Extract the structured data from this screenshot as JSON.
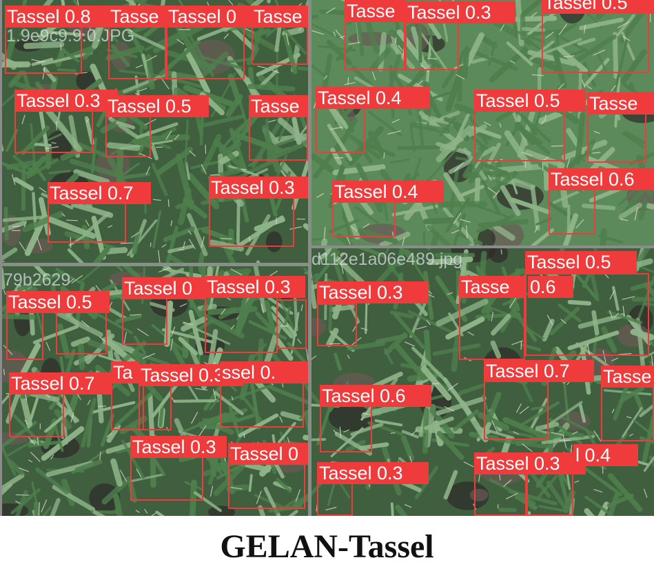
{
  "caption": "GELAN-Tassel",
  "colors": {
    "box": "#ef3b3b",
    "leaf": "#4f7f4d",
    "leaf_light": "#8fb489",
    "soil": "#2d2a28",
    "frame": "#8a8d8a"
  },
  "panels": [
    {
      "filename": "1.9e9c9.9.0.JPG",
      "detections": [
        {
          "label": "Tassel 0.8"
        },
        {
          "label": "Tasse"
        },
        {
          "label": "Tassel 0"
        },
        {
          "label": "Tasse"
        },
        {
          "label": "Tassel 0.3"
        },
        {
          "label": "Tassel 0.5"
        },
        {
          "label": "Tasse"
        },
        {
          "label": "Tassel 0.7"
        },
        {
          "label": "Tassel 0.3"
        }
      ]
    },
    {
      "filename": "",
      "detections": [
        {
          "label": "Tasse"
        },
        {
          "label": "Tassel 0.3"
        },
        {
          "label": "Tassel 0.5"
        },
        {
          "label": "Tassel 0.4"
        },
        {
          "label": "Tassel 0.5"
        },
        {
          "label": "Tasse"
        },
        {
          "label": "Tassel 0.4"
        },
        {
          "label": "Tassel 0.6"
        }
      ]
    },
    {
      "filename": "79b2629",
      "detections": [
        {
          "label": "Tassel 0.5"
        },
        {
          "label": "Tassel 0"
        },
        {
          "label": "Tassel 0.3"
        },
        {
          "label": "Tassel 0.7"
        },
        {
          "label": "Ta"
        },
        {
          "label": "Tassel 0.3"
        },
        {
          "label": "ssel 0."
        },
        {
          "label": "Tassel 0.3"
        },
        {
          "label": "Tassel 0"
        }
      ]
    },
    {
      "filename": "d112e1a06e489.jpg",
      "detections": [
        {
          "label": "Tassel 0.3"
        },
        {
          "label": "Tassel 0.5"
        },
        {
          "label": "Tasse"
        },
        {
          "label": "0.6"
        },
        {
          "label": "Tassel 0.7"
        },
        {
          "label": "Tasse"
        },
        {
          "label": "Tassel 0.6"
        },
        {
          "label": "Tassel 0.3"
        },
        {
          "label": "Tassel 0.3"
        },
        {
          "label": "l 0.4"
        }
      ]
    }
  ]
}
